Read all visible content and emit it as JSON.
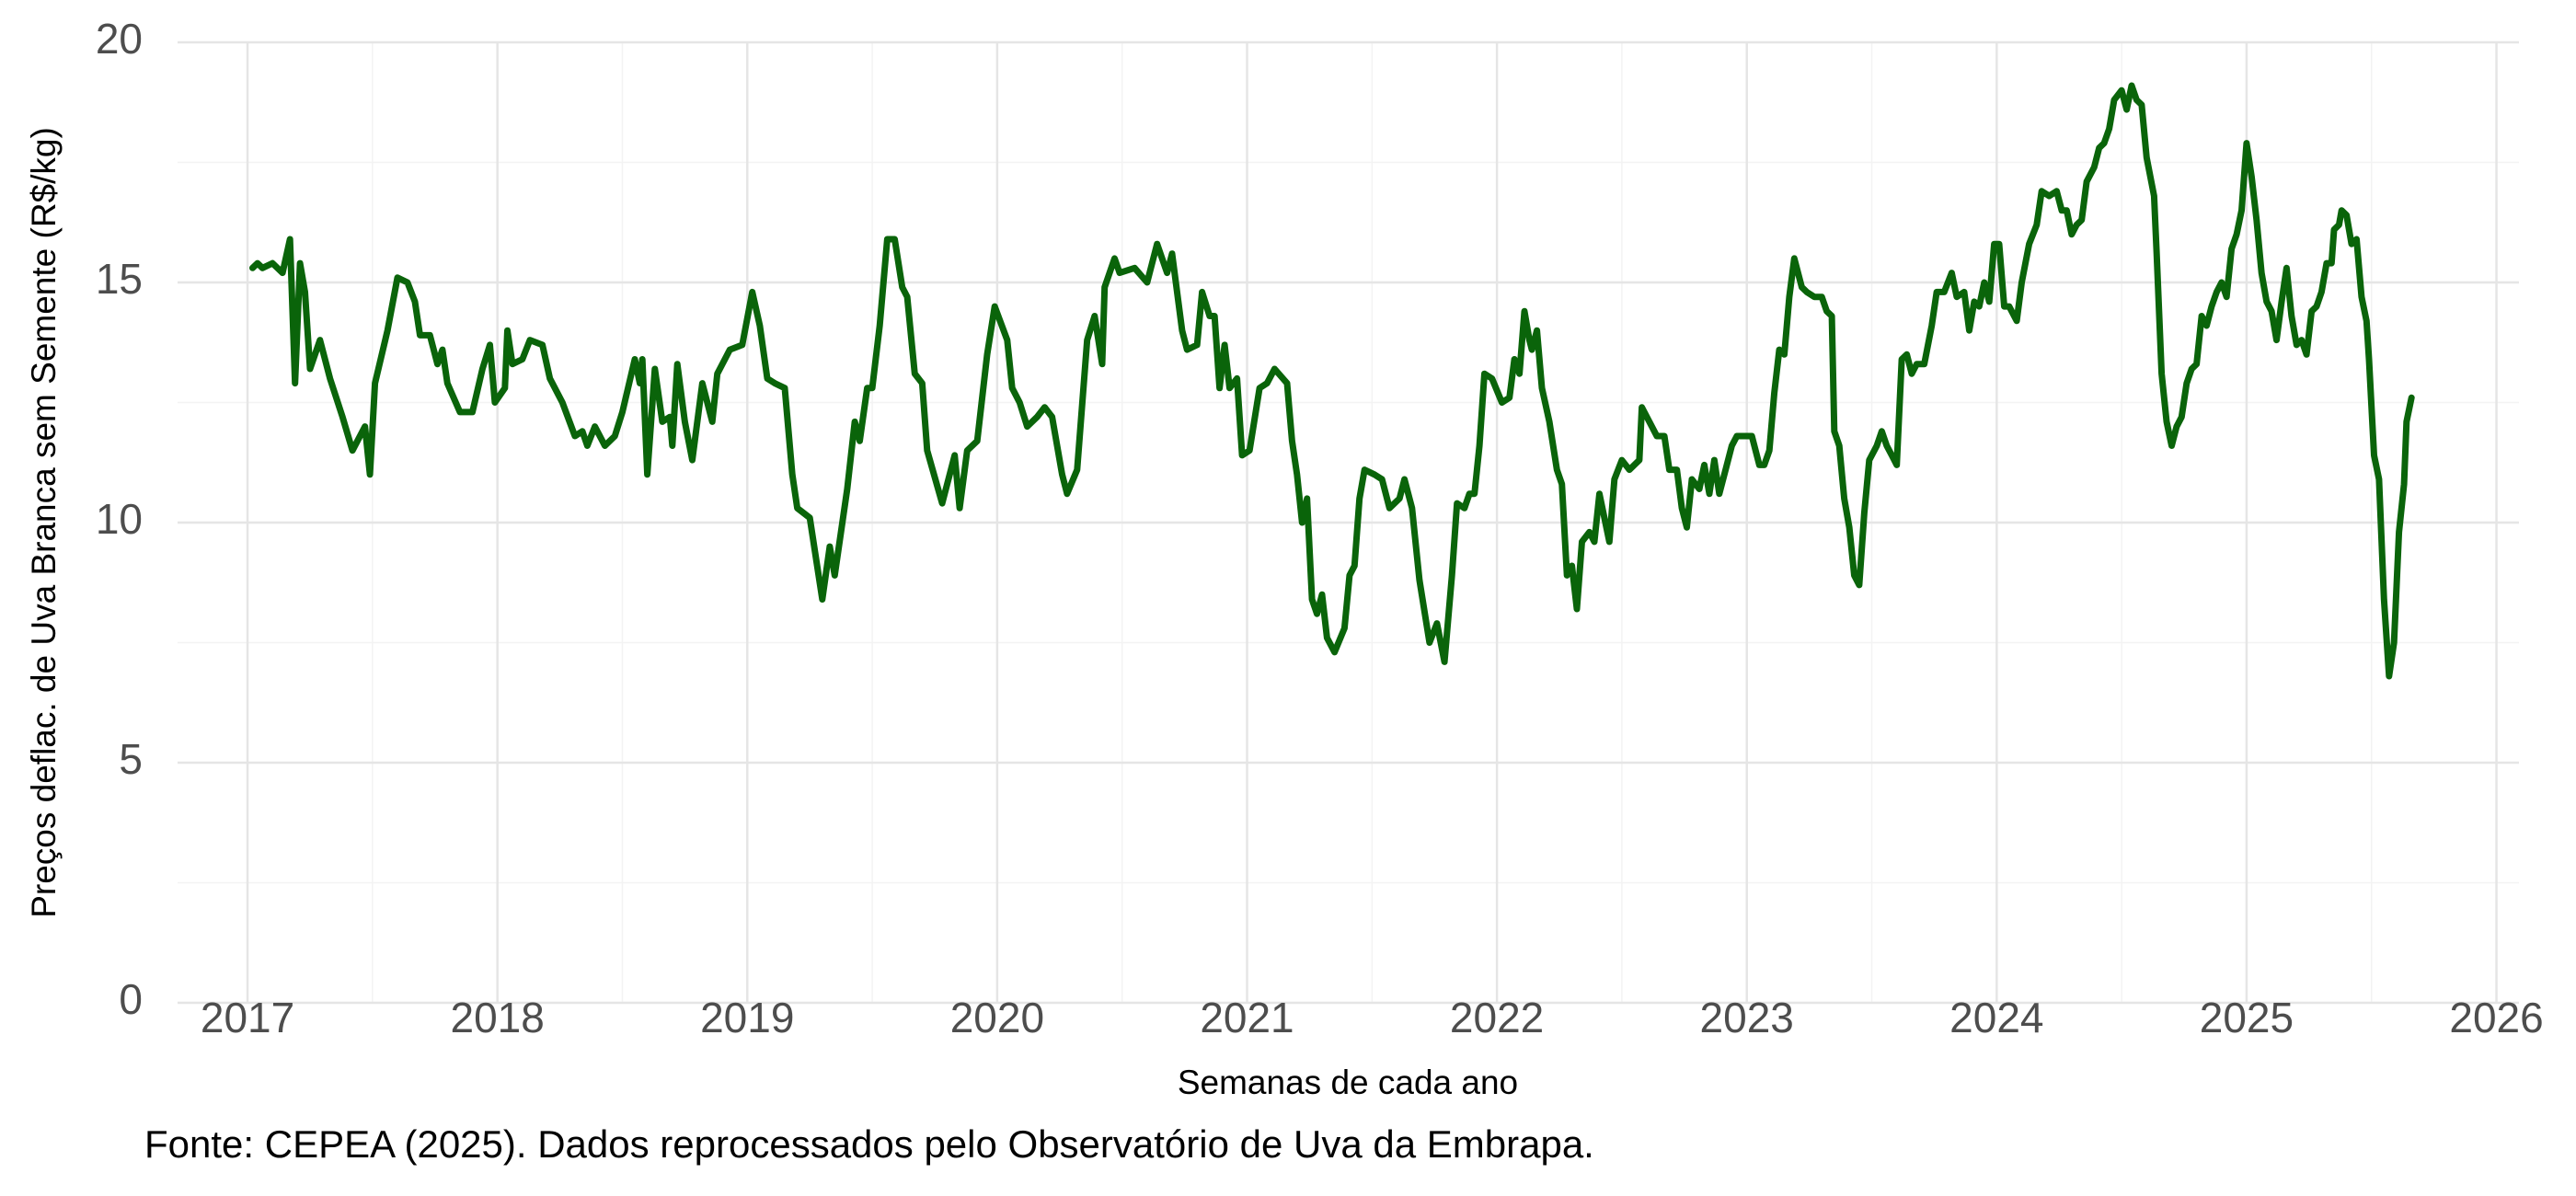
{
  "chart_data": {
    "type": "line",
    "x_label": "Semanas de cada ano",
    "y_label": "Preços deflac. de Uva Branca sem Semente (R$/kg)",
    "caption": "Fonte: CEPEA (2025). Dados reprocessados pelo Observatório de Uva da Embrapa.",
    "xlim": [
      2016.72,
      2026.09
    ],
    "xticks": [
      2017,
      2018,
      2019,
      2020,
      2021,
      2022,
      2023,
      2024,
      2025,
      2026
    ],
    "ylim": [
      0,
      20
    ],
    "yticks": [
      0,
      5,
      10,
      15,
      20
    ],
    "grid": true,
    "series": [
      {
        "color": "#0a640a",
        "x": [
          2017.02,
          2017.04,
          2017.06,
          2017.1,
          2017.14,
          2017.17,
          2017.19,
          2017.21,
          2017.23,
          2017.25,
          2017.29,
          2017.33,
          2017.38,
          2017.42,
          2017.47,
          2017.49,
          2017.51,
          2017.56,
          2017.6,
          2017.64,
          2017.67,
          2017.69,
          2017.73,
          2017.76,
          2017.78,
          2017.8,
          2017.85,
          2017.9,
          2017.94,
          2017.97,
          2017.99,
          2018.03,
          2018.04,
          2018.06,
          2018.1,
          2018.13,
          2018.18,
          2018.21,
          2018.26,
          2018.31,
          2018.34,
          2018.36,
          2018.39,
          2018.43,
          2018.47,
          2018.5,
          2018.55,
          2018.57,
          2018.58,
          2018.6,
          2018.63,
          2018.66,
          2018.69,
          2018.7,
          2018.72,
          2018.75,
          2018.78,
          2018.82,
          2018.86,
          2018.88,
          2018.93,
          2018.98,
          2019.02,
          2019.05,
          2019.08,
          2019.11,
          2019.15,
          2019.18,
          2019.2,
          2019.25,
          2019.3,
          2019.33,
          2019.35,
          2019.4,
          2019.43,
          2019.45,
          2019.48,
          2019.5,
          2019.53,
          2019.56,
          2019.59,
          2019.62,
          2019.64,
          2019.67,
          2019.7,
          2019.72,
          2019.78,
          2019.83,
          2019.85,
          2019.88,
          2019.92,
          2019.96,
          2019.99,
          2020.04,
          2020.06,
          2020.09,
          2020.12,
          2020.16,
          2020.19,
          2020.22,
          2020.26,
          2020.28,
          2020.32,
          2020.36,
          2020.39,
          2020.42,
          2020.43,
          2020.47,
          2020.49,
          2020.55,
          2020.6,
          2020.64,
          2020.68,
          2020.7,
          2020.74,
          2020.76,
          2020.8,
          2020.82,
          2020.85,
          2020.87,
          2020.89,
          2020.91,
          2020.93,
          2020.96,
          2020.98,
          2021.01,
          2021.05,
          2021.08,
          2021.11,
          2021.16,
          2021.18,
          2021.2,
          2021.22,
          2021.24,
          2021.26,
          2021.28,
          2021.3,
          2021.32,
          2021.35,
          2021.39,
          2021.41,
          2021.43,
          2021.45,
          2021.47,
          2021.51,
          2021.54,
          2021.57,
          2021.61,
          2021.63,
          2021.66,
          2021.69,
          2021.73,
          2021.76,
          2021.79,
          2021.82,
          2021.84,
          2021.87,
          2021.89,
          2021.91,
          2021.93,
          2021.95,
          2021.98,
          2022.02,
          2022.05,
          2022.07,
          2022.09,
          2022.11,
          2022.13,
          2022.14,
          2022.16,
          2022.18,
          2022.21,
          2022.24,
          2022.26,
          2022.28,
          2022.3,
          2022.32,
          2022.34,
          2022.37,
          2022.39,
          2022.41,
          2022.45,
          2022.47,
          2022.5,
          2022.53,
          2022.57,
          2022.58,
          2022.62,
          2022.64,
          2022.67,
          2022.69,
          2022.72,
          2022.74,
          2022.76,
          2022.78,
          2022.81,
          2022.83,
          2022.85,
          2022.87,
          2022.89,
          2022.92,
          2022.94,
          2022.96,
          2022.99,
          2023.02,
          2023.05,
          2023.07,
          2023.09,
          2023.11,
          2023.13,
          2023.15,
          2023.17,
          2023.19,
          2023.22,
          2023.24,
          2023.27,
          2023.3,
          2023.32,
          2023.34,
          2023.35,
          2023.37,
          2023.39,
          2023.41,
          2023.43,
          2023.45,
          2023.47,
          2023.49,
          2023.52,
          2023.54,
          2023.56,
          2023.58,
          2023.6,
          2023.62,
          2023.64,
          2023.66,
          2023.68,
          2023.71,
          2023.74,
          2023.76,
          2023.79,
          2023.82,
          2023.84,
          2023.87,
          2023.89,
          2023.91,
          2023.93,
          2023.95,
          2023.97,
          2023.99,
          2024.01,
          2024.03,
          2024.05,
          2024.08,
          2024.1,
          2024.13,
          2024.16,
          2024.18,
          2024.21,
          2024.24,
          2024.26,
          2024.28,
          2024.3,
          2024.32,
          2024.34,
          2024.36,
          2024.39,
          2024.41,
          2024.43,
          2024.45,
          2024.47,
          2024.5,
          2024.52,
          2024.54,
          2024.56,
          2024.58,
          2024.6,
          2024.63,
          2024.64,
          2024.66,
          2024.68,
          2024.7,
          2024.72,
          2024.74,
          2024.76,
          2024.78,
          2024.8,
          2024.82,
          2024.84,
          2024.86,
          2024.88,
          2024.9,
          2024.92,
          2024.94,
          2024.96,
          2024.98,
          2025.0,
          2025.02,
          2025.04,
          2025.06,
          2025.08,
          2025.1,
          2025.12,
          2025.14,
          2025.16,
          2025.18,
          2025.2,
          2025.22,
          2025.24,
          2025.26,
          2025.28,
          2025.3,
          2025.32,
          2025.34,
          2025.35,
          2025.37,
          2025.38,
          2025.4,
          2025.42,
          2025.44,
          2025.46,
          2025.48,
          2025.49,
          2025.51,
          2025.53,
          2025.55,
          2025.57,
          2025.59,
          2025.61,
          2025.63,
          2025.64,
          2025.66
        ],
        "values": [
          15.3,
          15.4,
          15.3,
          15.4,
          15.2,
          15.9,
          12.9,
          15.4,
          14.8,
          13.2,
          13.8,
          13.0,
          12.2,
          11.5,
          12.0,
          11.0,
          12.9,
          14.0,
          15.1,
          15.0,
          14.6,
          13.9,
          13.9,
          13.3,
          13.6,
          12.9,
          12.3,
          12.3,
          13.2,
          13.7,
          12.5,
          12.8,
          14.0,
          13.3,
          13.4,
          13.8,
          13.7,
          13.0,
          12.5,
          11.8,
          11.9,
          11.6,
          12.0,
          11.6,
          11.8,
          12.3,
          13.4,
          12.9,
          13.4,
          11.0,
          13.2,
          12.1,
          12.2,
          11.6,
          13.3,
          12.1,
          11.3,
          12.9,
          12.1,
          13.1,
          13.6,
          13.7,
          14.8,
          14.1,
          13.0,
          12.9,
          12.8,
          11.0,
          10.3,
          10.1,
          8.4,
          9.5,
          8.9,
          10.7,
          12.1,
          11.7,
          12.8,
          12.8,
          14.1,
          15.9,
          15.9,
          14.9,
          14.7,
          13.1,
          12.9,
          11.5,
          10.4,
          11.4,
          10.3,
          11.5,
          11.7,
          13.5,
          14.5,
          13.8,
          12.8,
          12.5,
          12.0,
          12.2,
          12.4,
          12.2,
          11.0,
          10.6,
          11.1,
          13.8,
          14.3,
          13.3,
          14.9,
          15.5,
          15.2,
          15.3,
          15.0,
          15.8,
          15.2,
          15.6,
          14.0,
          13.6,
          13.7,
          14.8,
          14.3,
          14.3,
          12.8,
          13.7,
          12.8,
          13.0,
          11.4,
          11.5,
          12.8,
          12.9,
          13.2,
          12.9,
          11.7,
          11.0,
          10.0,
          10.5,
          8.4,
          8.1,
          8.5,
          7.6,
          7.3,
          7.8,
          8.9,
          9.1,
          10.5,
          11.1,
          11.0,
          10.9,
          10.3,
          10.5,
          10.9,
          10.3,
          8.8,
          7.5,
          7.9,
          7.1,
          8.9,
          10.4,
          10.3,
          10.6,
          10.6,
          11.6,
          13.1,
          13.0,
          12.5,
          12.6,
          13.4,
          13.1,
          14.4,
          13.8,
          13.6,
          14.0,
          12.8,
          12.1,
          11.1,
          10.8,
          8.9,
          9.1,
          8.2,
          9.6,
          9.8,
          9.6,
          10.6,
          9.6,
          10.9,
          11.3,
          11.1,
          11.3,
          12.4,
          12.0,
          11.8,
          11.8,
          11.1,
          11.1,
          10.3,
          9.9,
          10.9,
          10.7,
          11.2,
          10.6,
          11.3,
          10.6,
          11.2,
          11.6,
          11.8,
          11.8,
          11.8,
          11.2,
          11.2,
          11.5,
          12.7,
          13.6,
          13.5,
          14.7,
          15.5,
          14.9,
          14.8,
          14.7,
          14.7,
          14.4,
          14.3,
          11.9,
          11.6,
          10.5,
          9.9,
          8.9,
          8.7,
          10.2,
          11.3,
          11.6,
          11.9,
          11.6,
          11.4,
          11.2,
          13.4,
          13.5,
          13.1,
          13.3,
          13.3,
          14.1,
          14.8,
          14.8,
          15.2,
          14.7,
          14.8,
          14.0,
          14.6,
          14.5,
          15.0,
          14.6,
          15.8,
          15.8,
          14.5,
          14.5,
          14.2,
          15.0,
          15.8,
          16.2,
          16.9,
          16.8,
          16.9,
          16.5,
          16.5,
          16.0,
          16.2,
          16.3,
          17.1,
          17.4,
          17.8,
          17.9,
          18.2,
          18.8,
          19.0,
          18.6,
          19.1,
          18.8,
          18.7,
          17.6,
          16.8,
          15.6,
          13.1,
          12.1,
          11.6,
          12.0,
          12.2,
          12.9,
          13.2,
          13.3,
          14.3,
          14.1,
          14.5,
          14.8,
          15.0,
          14.7,
          15.7,
          16.0,
          16.5,
          17.9,
          17.2,
          16.3,
          15.2,
          14.6,
          14.4,
          13.8,
          14.6,
          15.3,
          14.3,
          13.7,
          13.8,
          13.5,
          14.4,
          14.5,
          14.8,
          15.4,
          15.4,
          16.1,
          16.2,
          16.5,
          16.4,
          15.8,
          15.9,
          14.7,
          14.2,
          13.4,
          11.4,
          10.9,
          8.4,
          6.8,
          7.5,
          9.8,
          10.8,
          12.1,
          12.6
        ]
      }
    ]
  }
}
